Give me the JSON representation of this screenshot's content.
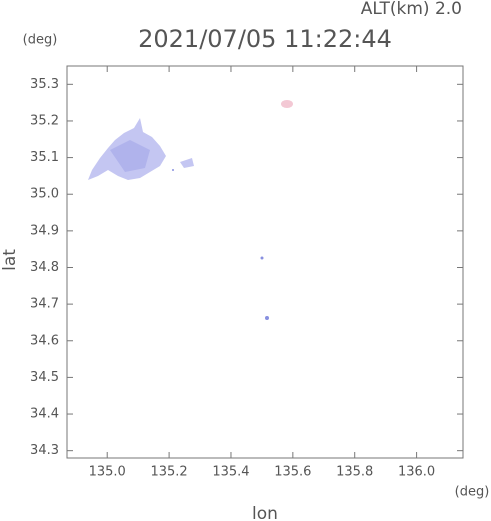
{
  "chart_data": {
    "type": "map",
    "title": "2021/07/05 11:22:44",
    "subtitle": "ALT(km) 2.0",
    "y_unit": "(deg)",
    "x_unit": "(deg)",
    "xlabel": "lon",
    "ylabel": "lat",
    "xlim": [
      134.87,
      136.15
    ],
    "ylim": [
      34.28,
      35.35
    ],
    "xticks": [
      {
        "value": 135.0,
        "label": "135.0"
      },
      135.2,
      135.4,
      135.6,
      135.8,
      {
        "value": 136.0,
        "label": "136.0"
      }
    ],
    "yticks": [
      34.3,
      34.4,
      34.5,
      34.6,
      34.7,
      34.8,
      34.9,
      {
        "value": 35.0,
        "label": "35.0"
      },
      35.1,
      35.2,
      35.3
    ]
  }
}
